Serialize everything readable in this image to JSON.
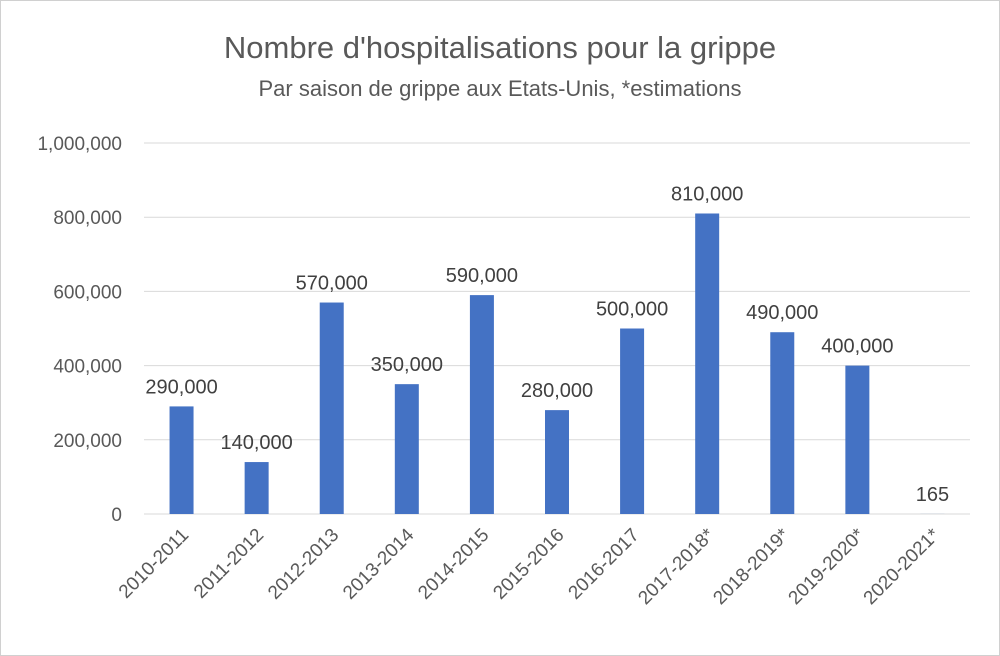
{
  "chart_data": {
    "type": "bar",
    "title": "Nombre d'hospitalisations pour la grippe",
    "subtitle": "Par saison de grippe aux Etats-Unis, *estimations",
    "xlabel": "",
    "ylabel": "",
    "categories": [
      "2010-2011",
      "2011-2012",
      "2012-2013",
      "2013-2014",
      "2014-2015",
      "2015-2016",
      "2016-2017",
      "2017-2018*",
      "2018-2019*",
      "2019-2020*",
      "2020-2021*"
    ],
    "values": [
      290000,
      140000,
      570000,
      350000,
      590000,
      280000,
      500000,
      810000,
      490000,
      400000,
      165
    ],
    "data_labels": [
      "290,000",
      "140,000",
      "570,000",
      "350,000",
      "590,000",
      "280,000",
      "500,000",
      "810,000",
      "490,000",
      "400,000",
      "165"
    ],
    "ylim": [
      0,
      1000000
    ],
    "yticks": [
      0,
      200000,
      400000,
      600000,
      800000,
      1000000
    ],
    "ytick_labels": [
      "0",
      "200,000",
      "400,000",
      "600,000",
      "800,000",
      "1,000,000"
    ],
    "grid": true,
    "legend": "none",
    "colors": {
      "bar": "#4472C4",
      "grid": "#d9d9d9",
      "text": "#595959"
    }
  }
}
